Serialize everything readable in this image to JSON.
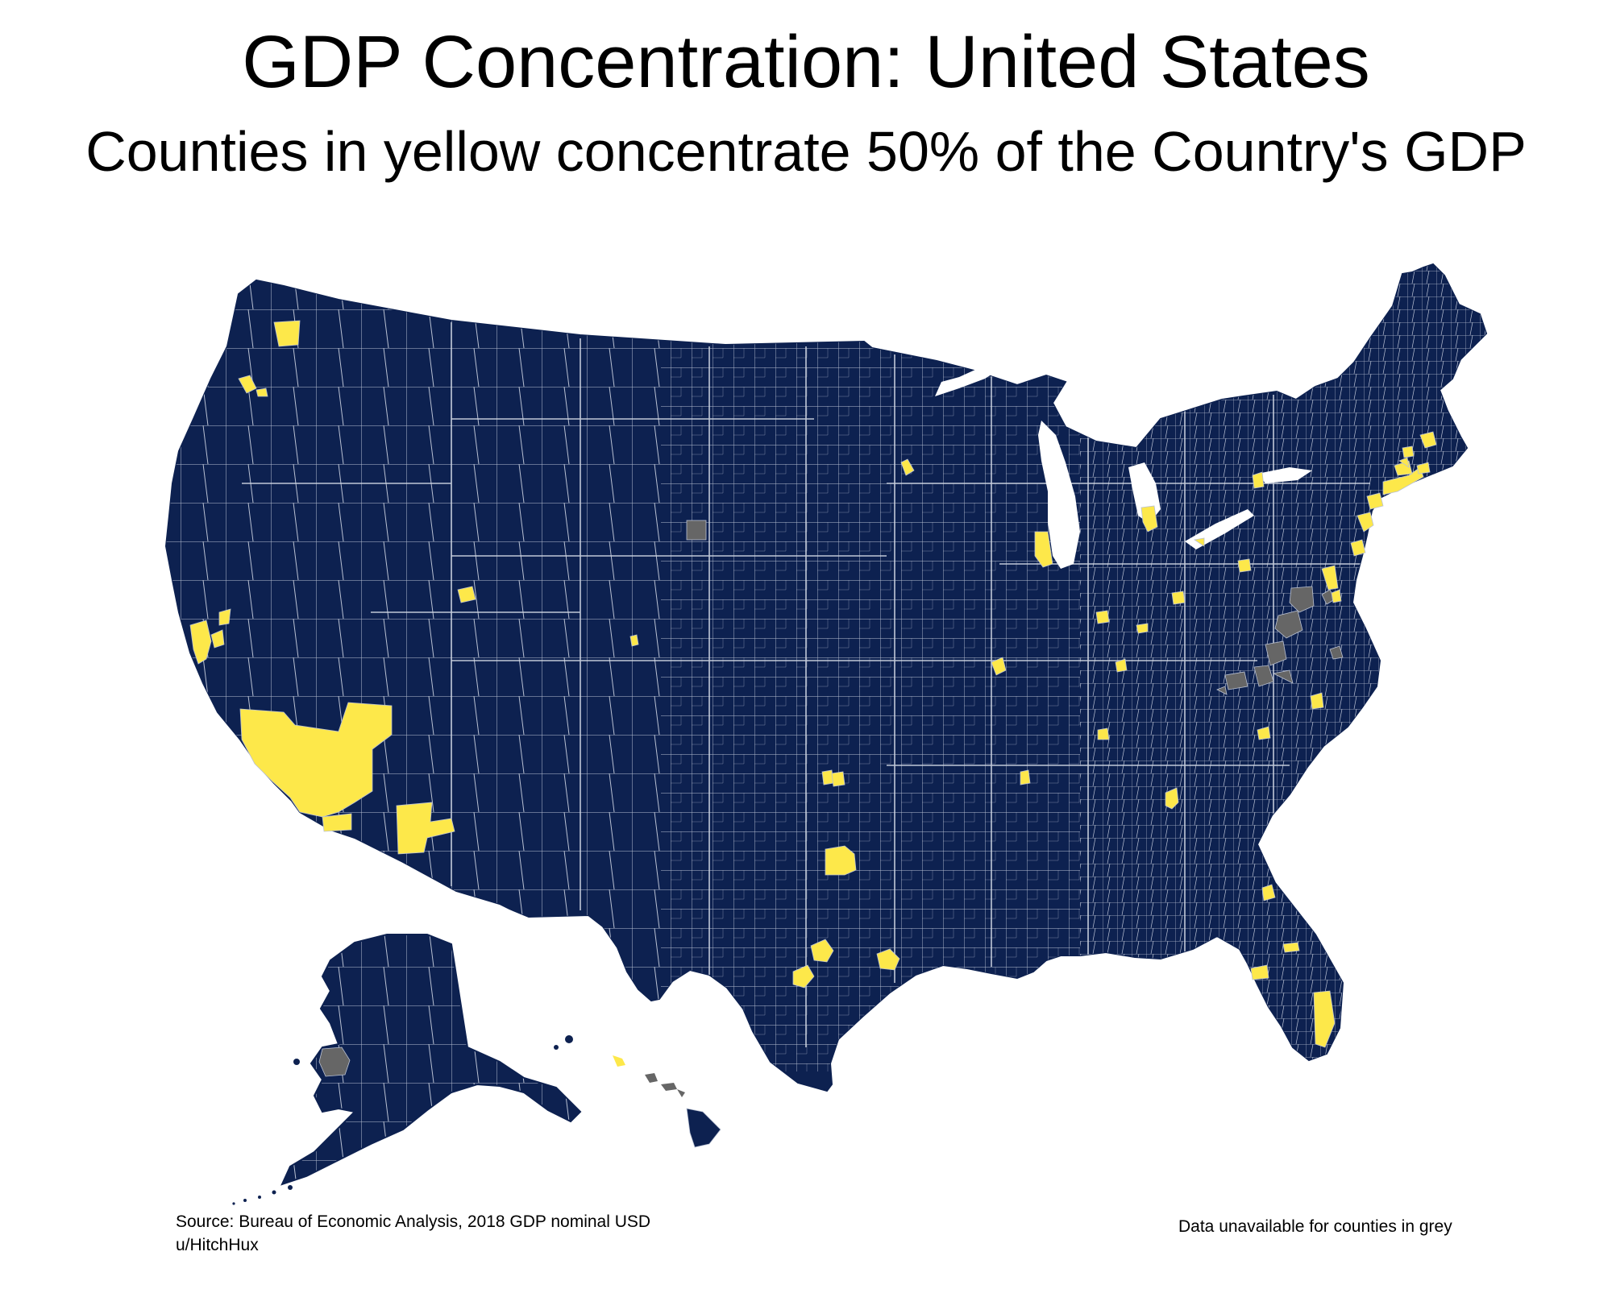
{
  "title": "GDP Concentration: United States",
  "subtitle": "Counties in yellow concentrate 50% of the Country's GDP",
  "footer": {
    "source": "Source: Bureau of Economic Analysis, 2018 GDP nominal USD",
    "author": "u/HitchHux",
    "note": "Data unavailable for counties in grey"
  },
  "map": {
    "colors": {
      "base": "#0d2150",
      "highlight": "#fde84a",
      "unavailable": "#666666",
      "border": "#b9c1d3",
      "background": "#ffffff"
    },
    "legend": {
      "highlight_meaning": "50% of GDP",
      "grey_meaning": "data unavailable"
    }
  }
}
